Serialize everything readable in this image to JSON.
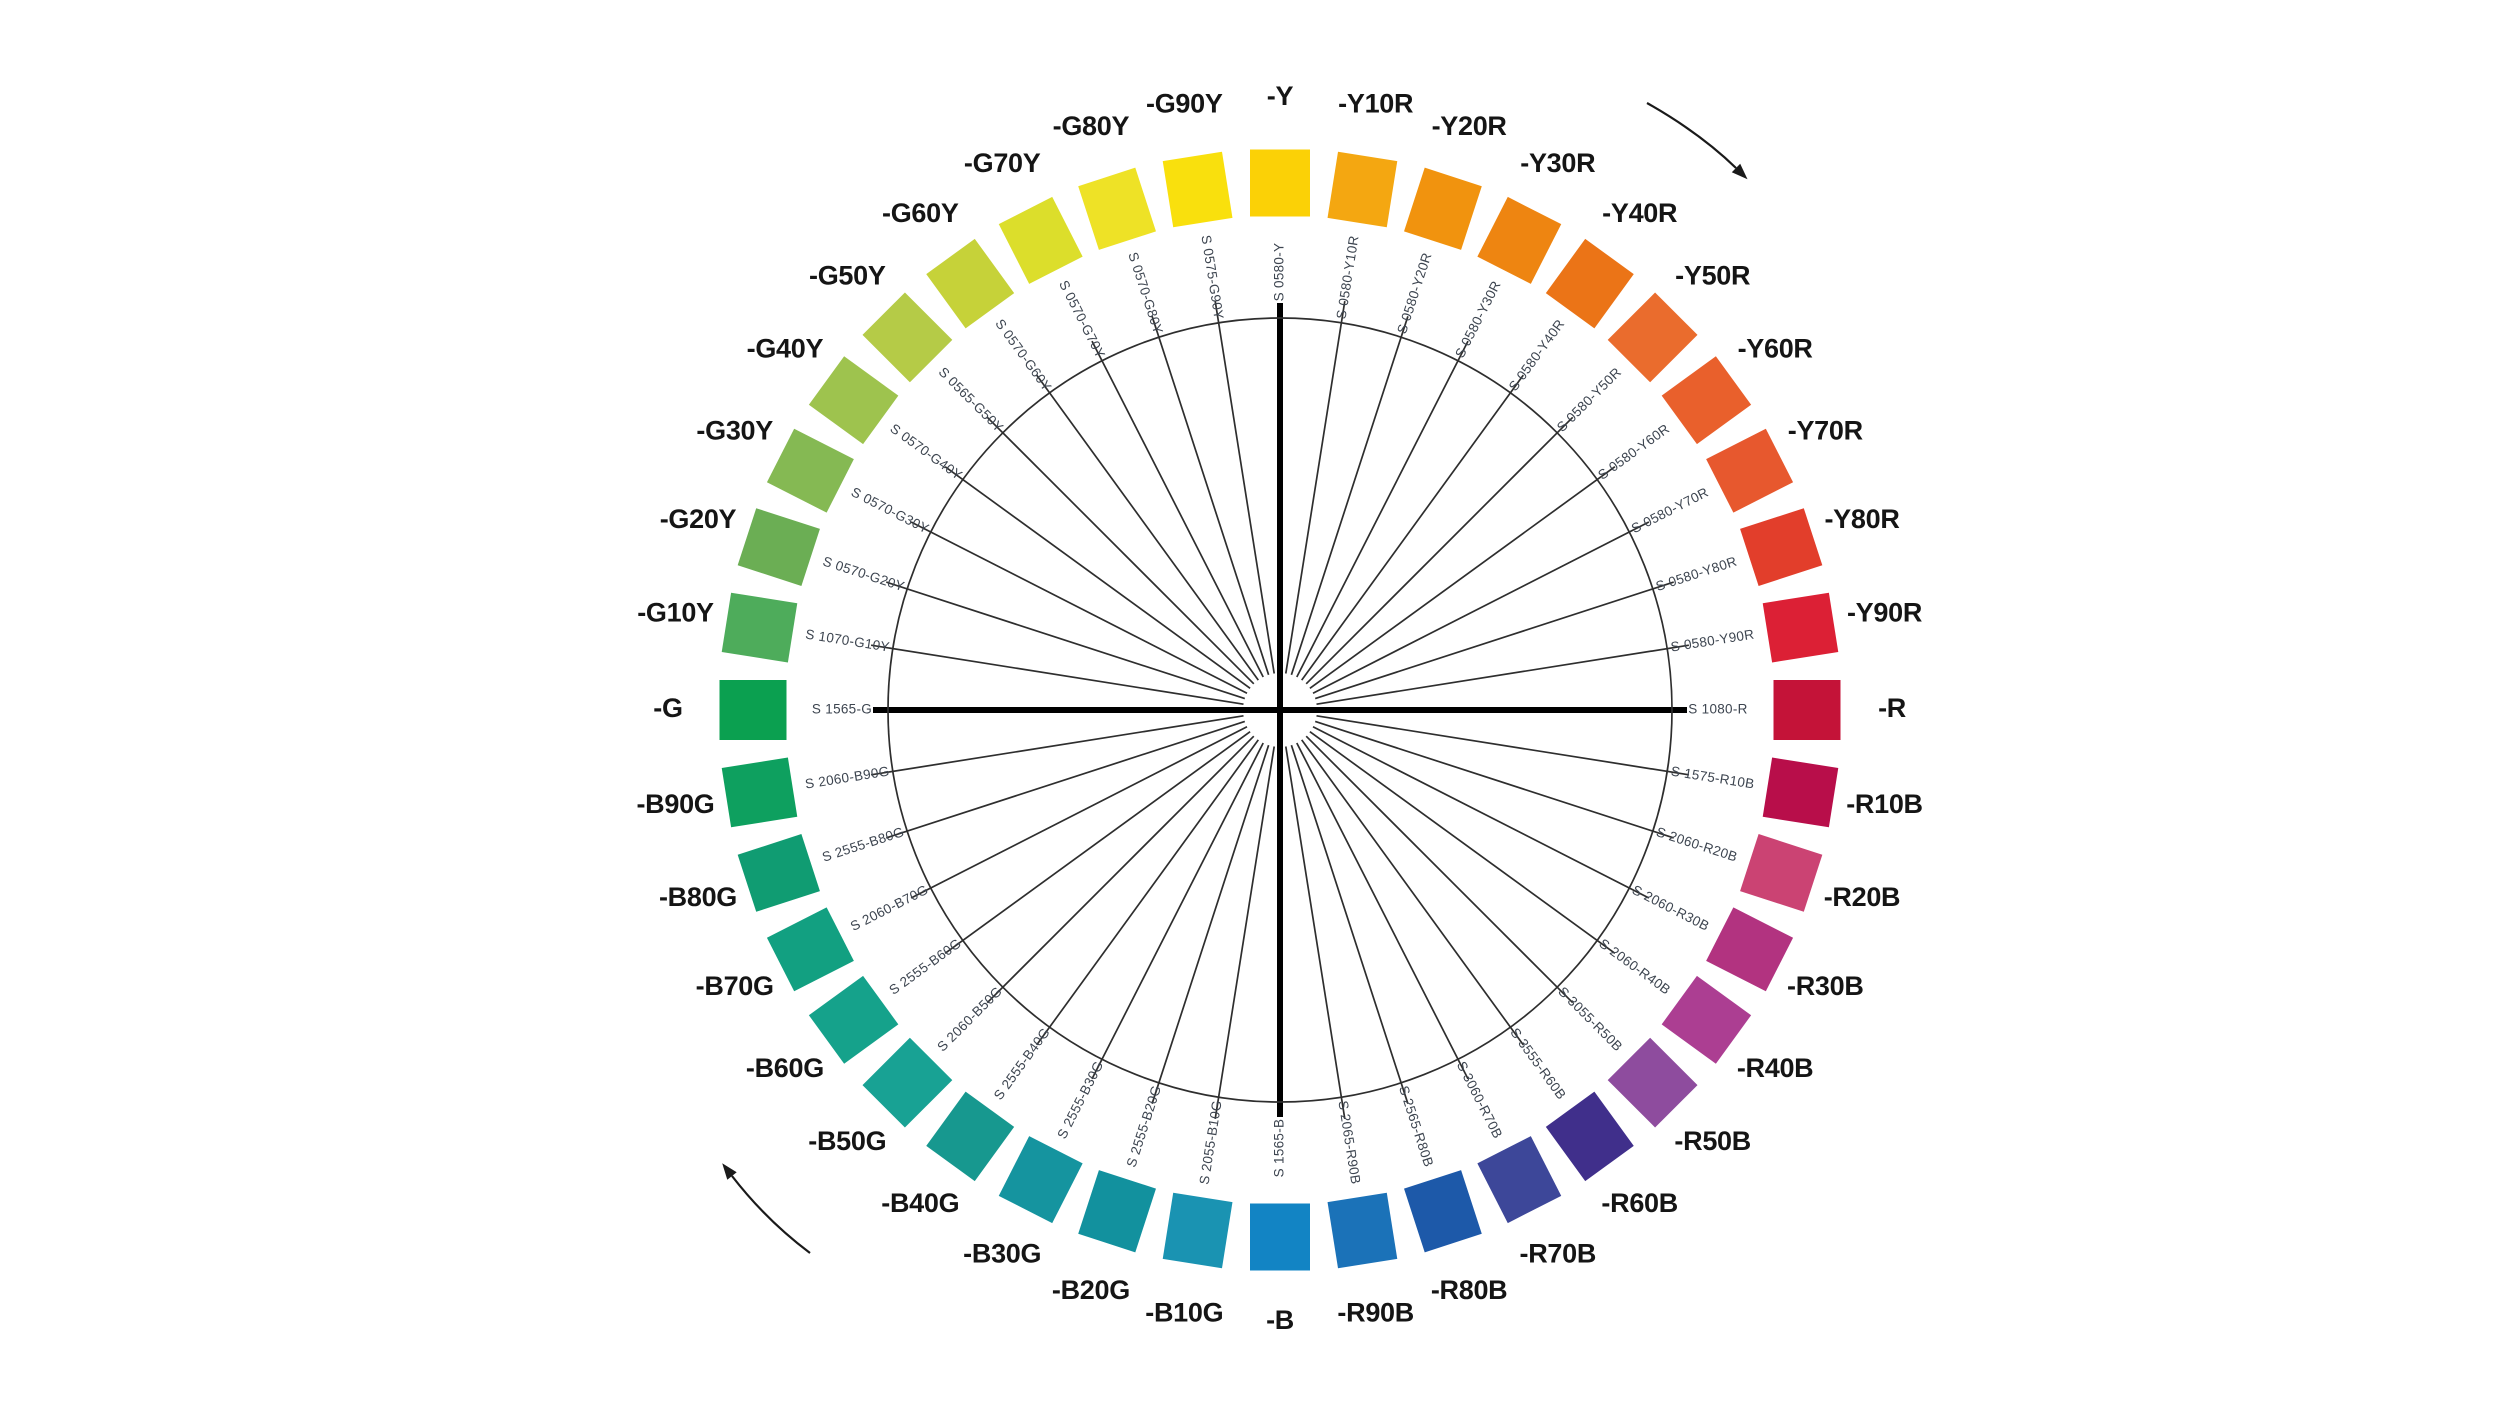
{
  "figure": {
    "background": "#ffffff",
    "spoke_color": "#2e2e2e",
    "axis_color": "#000000",
    "code_label_color": "#3d4550",
    "hue_label_color": "#151515",
    "arrow_color": "#1a1a1a"
  },
  "chart_data": {
    "type": "color-wheel",
    "description": "NCS colour circle — 40 hues shown at maximum chromaticness",
    "direction": "clockwise",
    "hues": [
      {
        "label": "-Y",
        "code": "S 0580-Y",
        "color": "#FBD106"
      },
      {
        "label": "-Y10R",
        "code": "S 0580-Y10R",
        "color": "#F4A711"
      },
      {
        "label": "-Y20R",
        "code": "S 0580-Y20R",
        "color": "#F1930E"
      },
      {
        "label": "-Y30R",
        "code": "S 0580-Y30R",
        "color": "#EE8511"
      },
      {
        "label": "-Y40R",
        "code": "S 0580-Y40R",
        "color": "#EB7417"
      },
      {
        "label": "-Y50R",
        "code": "S 0580-Y50R",
        "color": "#EA6C2D"
      },
      {
        "label": "-Y60R",
        "code": "S 0580-Y60R",
        "color": "#E9602C"
      },
      {
        "label": "-Y70R",
        "code": "S 0580-Y70R",
        "color": "#E7582E"
      },
      {
        "label": "-Y80R",
        "code": "S 0580-Y80R",
        "color": "#E23E2B"
      },
      {
        "label": "-Y90R",
        "code": "S 0580-Y90R",
        "color": "#DC2035"
      },
      {
        "label": "-R",
        "code": "S 1080-R",
        "color": "#C41338"
      },
      {
        "label": "-R10B",
        "code": "S 1575-R10B",
        "color": "#B80E4A"
      },
      {
        "label": "-R20B",
        "code": "S 2060-R20B",
        "color": "#CB4373"
      },
      {
        "label": "-R30B",
        "code": "S 2060-R30B",
        "color": "#B23380"
      },
      {
        "label": "-R40B",
        "code": "S 2060-R40B",
        "color": "#AC3E92"
      },
      {
        "label": "-R50B",
        "code": "S 3055-R50B",
        "color": "#8E4C9E"
      },
      {
        "label": "-R60B",
        "code": "S 3555-R60B",
        "color": "#402F8B"
      },
      {
        "label": "-R70B",
        "code": "S 3060-R70B",
        "color": "#3D4799"
      },
      {
        "label": "-R80B",
        "code": "S 2565-R80B",
        "color": "#1D59A9"
      },
      {
        "label": "-R90B",
        "code": "S 2065-R90B",
        "color": "#1B72B8"
      },
      {
        "label": "-B",
        "code": "S 1565-B",
        "color": "#1284C4"
      },
      {
        "label": "-B10G",
        "code": "S 2055-B10G",
        "color": "#1A93B2"
      },
      {
        "label": "-B20G",
        "code": "S 2555-B20G",
        "color": "#12919E"
      },
      {
        "label": "-B30G",
        "code": "S 2555-B30G",
        "color": "#15949F"
      },
      {
        "label": "-B40G",
        "code": "S 2555-B40G",
        "color": "#17988F"
      },
      {
        "label": "-B50G",
        "code": "S 2060-B50G",
        "color": "#18A294"
      },
      {
        "label": "-B60G",
        "code": "S 2555-B60G",
        "color": "#15A28B"
      },
      {
        "label": "-B70G",
        "code": "S 2060-B70G",
        "color": "#12A081"
      },
      {
        "label": "-B80G",
        "code": "S 2555-B80G",
        "color": "#109C72"
      },
      {
        "label": "-B90G",
        "code": "S 2060-B90G",
        "color": "#0EA05F"
      },
      {
        "label": "-G",
        "code": "S 1565-G",
        "color": "#0BA050"
      },
      {
        "label": "-G10Y",
        "code": "S 1070-G10Y",
        "color": "#4EAC5B"
      },
      {
        "label": "-G20Y",
        "code": "S 0570-G20Y",
        "color": "#6BAE54"
      },
      {
        "label": "-G30Y",
        "code": "S 0570-G30Y",
        "color": "#85B953"
      },
      {
        "label": "-G40Y",
        "code": "S 0570-G40Y",
        "color": "#9EC34E"
      },
      {
        "label": "-G50Y",
        "code": "S 0565-G50Y",
        "color": "#B5CB47"
      },
      {
        "label": "-G60Y",
        "code": "S 0570-G60Y",
        "color": "#C6D239"
      },
      {
        "label": "-G70Y",
        "code": "S 0570-G70Y",
        "color": "#DCDE2B"
      },
      {
        "label": "-G80Y",
        "code": "S 0570-G80Y",
        "color": "#EEE226"
      },
      {
        "label": "-G90Y",
        "code": "S 0575-G90Y",
        "color": "#F9E00D"
      }
    ],
    "arrows": [
      {
        "name": "clockwise-arrow-top-right"
      },
      {
        "name": "clockwise-arrow-bottom-left"
      }
    ]
  }
}
